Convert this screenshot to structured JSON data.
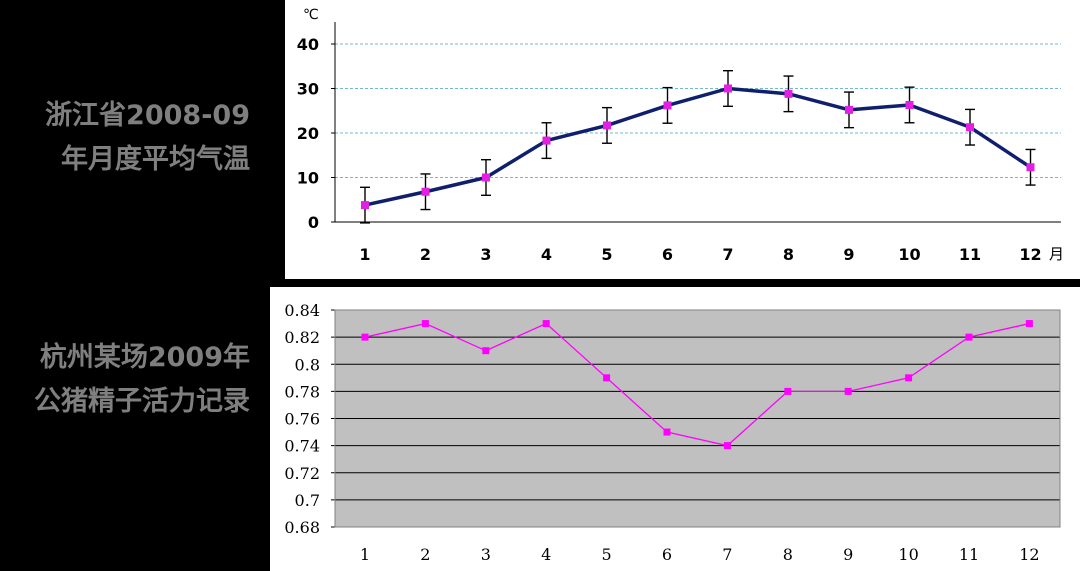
{
  "left_titles": {
    "chart1": [
      "浙江省2008-09",
      "年月度平均气温"
    ],
    "chart2": [
      "杭州某场2009年",
      "公猪精子活力记录"
    ]
  },
  "chart_data": [
    {
      "type": "line",
      "title": "浙江省2008-09年月度平均气温",
      "ylabel": "℃",
      "xlabel": "月",
      "x": [
        1,
        2,
        3,
        4,
        5,
        6,
        7,
        8,
        9,
        10,
        11,
        12
      ],
      "series": [
        {
          "values": [
            3.8,
            6.8,
            10.0,
            18.3,
            21.7,
            26.2,
            30.0,
            28.8,
            25.2,
            26.3,
            21.3,
            12.3
          ],
          "error": [
            4,
            4,
            4,
            4,
            4,
            4,
            4,
            4,
            4,
            4,
            4,
            4
          ]
        }
      ],
      "ylim": [
        0,
        40
      ],
      "yticks": [
        0,
        10,
        20,
        30,
        40
      ],
      "grid": true,
      "colors": {
        "line": "#0f1f6e",
        "marker": "#e21fe2",
        "grid": "#6fb9c9",
        "error_bar": "#000000"
      }
    },
    {
      "type": "line",
      "title": "杭州某场2009年公猪精子活力记录",
      "x": [
        1,
        2,
        3,
        4,
        5,
        6,
        7,
        8,
        9,
        10,
        11,
        12
      ],
      "series": [
        {
          "values": [
            0.82,
            0.83,
            0.81,
            0.83,
            0.79,
            0.75,
            0.74,
            0.78,
            0.78,
            0.79,
            0.82,
            0.83
          ]
        }
      ],
      "ylim": [
        0.68,
        0.84
      ],
      "yticks": [
        "0.68",
        "0.7",
        "0.72",
        "0.74",
        "0.76",
        "0.78",
        "0.8",
        "0.82",
        "0.84"
      ],
      "grid": true,
      "colors": {
        "line": "#ff00ff",
        "marker": "#ff00ff",
        "plot_bg": "#c0c0c0",
        "grid": "#000000"
      }
    }
  ]
}
